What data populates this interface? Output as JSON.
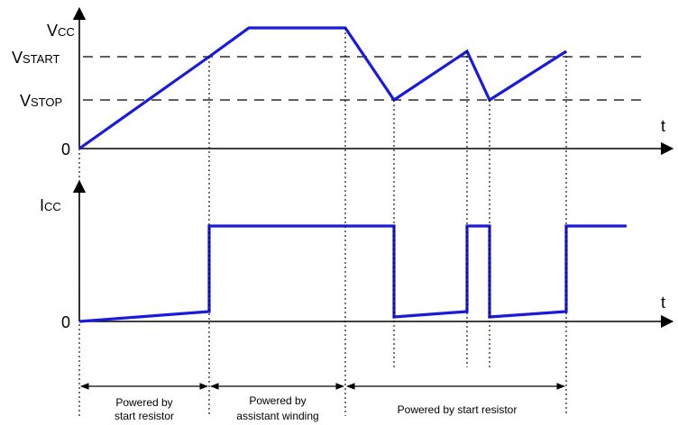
{
  "vcc_chart": {
    "y_axis_label": {
      "main": "V",
      "sub": "CC"
    },
    "x_axis_label": "t",
    "levels": {
      "start": {
        "main": "V",
        "sub": "START"
      },
      "stop": {
        "main": "V",
        "sub": "STOP"
      },
      "zero": "0"
    }
  },
  "icc_chart": {
    "y_axis_label": {
      "main": "I",
      "sub": "CC"
    },
    "x_axis_label": "t",
    "zero": "0"
  },
  "phases": [
    {
      "line1": "Powered by",
      "line2": "start resistor"
    },
    {
      "line1": "Powered by",
      "line2": "assistant winding"
    },
    {
      "line1": "Powered by start resistor",
      "line2": ""
    }
  ],
  "colors": {
    "waveform": "#1a1adc",
    "axes": "#000000"
  }
}
